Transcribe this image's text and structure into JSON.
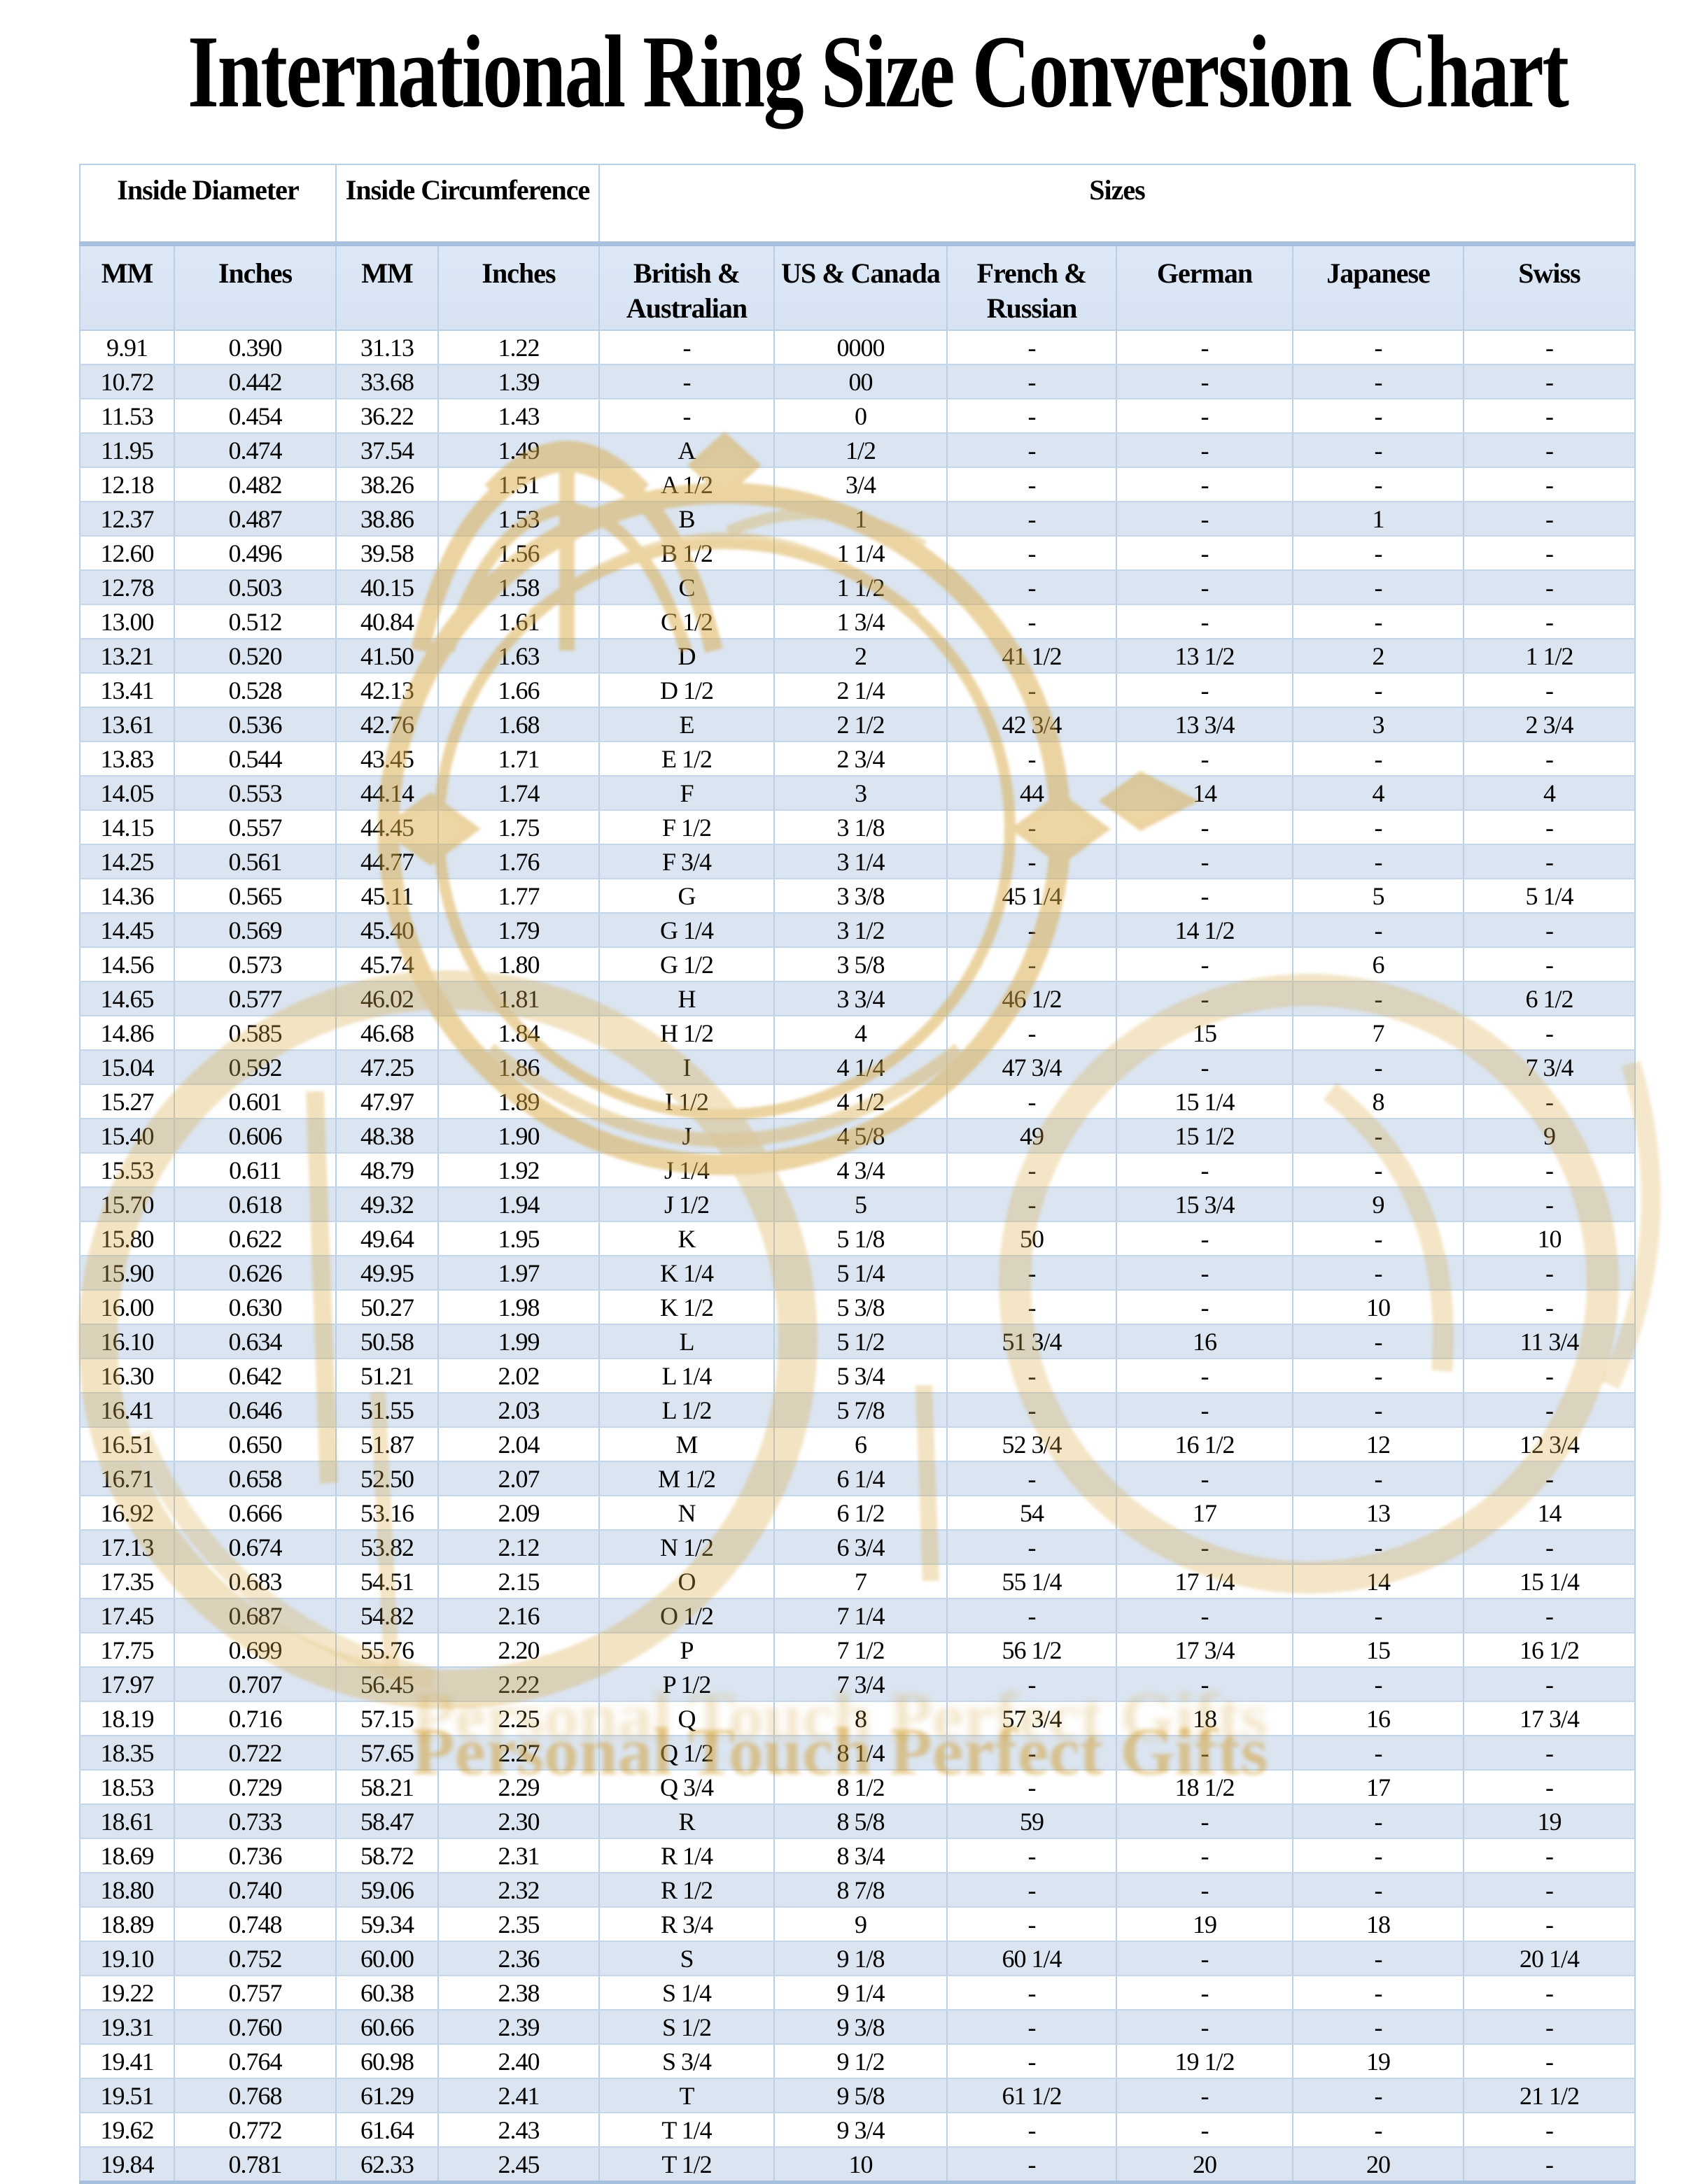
{
  "title": "International Ring Size Conversion Chart",
  "table": {
    "group_headers": [
      {
        "label": "Inside Diameter",
        "colspan": 2
      },
      {
        "label": "Inside Circumference",
        "colspan": 2
      },
      {
        "label": "Sizes",
        "colspan": 6
      }
    ],
    "columns": [
      "MM",
      "Inches",
      "MM",
      "Inches",
      "British & Australian",
      "US & Canada",
      "French & Russian",
      "German",
      "Japanese",
      "Swiss"
    ],
    "rows": [
      [
        "9.91",
        "0.390",
        "31.13",
        "1.22",
        "-",
        "0000",
        "-",
        "-",
        "-",
        "-"
      ],
      [
        "10.72",
        "0.442",
        "33.68",
        "1.39",
        "-",
        "00",
        "-",
        "-",
        "-",
        "-"
      ],
      [
        "11.53",
        "0.454",
        "36.22",
        "1.43",
        "-",
        "0",
        "-",
        "-",
        "-",
        "-"
      ],
      [
        "11.95",
        "0.474",
        "37.54",
        "1.49",
        "A",
        "1/2",
        "-",
        "-",
        "-",
        "-"
      ],
      [
        "12.18",
        "0.482",
        "38.26",
        "1.51",
        "A 1/2",
        "3/4",
        "-",
        "-",
        "-",
        "-"
      ],
      [
        "12.37",
        "0.487",
        "38.86",
        "1.53",
        "B",
        "1",
        "-",
        "-",
        "1",
        "-"
      ],
      [
        "12.60",
        "0.496",
        "39.58",
        "1.56",
        "B 1/2",
        "1 1/4",
        "-",
        "-",
        "-",
        "-"
      ],
      [
        "12.78",
        "0.503",
        "40.15",
        "1.58",
        "C",
        "1 1/2",
        "-",
        "-",
        "-",
        "-"
      ],
      [
        "13.00",
        "0.512",
        "40.84",
        "1.61",
        "C 1/2",
        "1 3/4",
        "-",
        "-",
        "-",
        "-"
      ],
      [
        "13.21",
        "0.520",
        "41.50",
        "1.63",
        "D",
        "2",
        "41 1/2",
        "13 1/2",
        "2",
        "1 1/2"
      ],
      [
        "13.41",
        "0.528",
        "42.13",
        "1.66",
        "D 1/2",
        "2 1/4",
        "-",
        "-",
        "-",
        "-"
      ],
      [
        "13.61",
        "0.536",
        "42.76",
        "1.68",
        "E",
        "2 1/2",
        "42 3/4",
        "13 3/4",
        "3",
        "2 3/4"
      ],
      [
        "13.83",
        "0.544",
        "43.45",
        "1.71",
        "E 1/2",
        "2 3/4",
        "-",
        "-",
        "-",
        "-"
      ],
      [
        "14.05",
        "0.553",
        "44.14",
        "1.74",
        "F",
        "3",
        "44",
        "14",
        "4",
        "4"
      ],
      [
        "14.15",
        "0.557",
        "44.45",
        "1.75",
        "F 1/2",
        "3 1/8",
        "-",
        "-",
        "-",
        "-"
      ],
      [
        "14.25",
        "0.561",
        "44.77",
        "1.76",
        "F 3/4",
        "3 1/4",
        "-",
        "-",
        "-",
        "-"
      ],
      [
        "14.36",
        "0.565",
        "45.11",
        "1.77",
        "G",
        "3 3/8",
        "45 1/4",
        "-",
        "5",
        "5 1/4"
      ],
      [
        "14.45",
        "0.569",
        "45.40",
        "1.79",
        "G 1/4",
        "3 1/2",
        "-",
        "14 1/2",
        "-",
        "-"
      ],
      [
        "14.56",
        "0.573",
        "45.74",
        "1.80",
        "G 1/2",
        "3 5/8",
        "-",
        "-",
        "6",
        "-"
      ],
      [
        "14.65",
        "0.577",
        "46.02",
        "1.81",
        "H",
        "3 3/4",
        "46 1/2",
        "-",
        "-",
        "6 1/2"
      ],
      [
        "14.86",
        "0.585",
        "46.68",
        "1.84",
        "H 1/2",
        "4",
        "-",
        "15",
        "7",
        "-"
      ],
      [
        "15.04",
        "0.592",
        "47.25",
        "1.86",
        "I",
        "4 1/4",
        "47 3/4",
        "-",
        "-",
        "7 3/4"
      ],
      [
        "15.27",
        "0.601",
        "47.97",
        "1.89",
        "I 1/2",
        "4 1/2",
        "-",
        "15 1/4",
        "8",
        "-"
      ],
      [
        "15.40",
        "0.606",
        "48.38",
        "1.90",
        "J",
        "4 5/8",
        "49",
        "15 1/2",
        "-",
        "9"
      ],
      [
        "15.53",
        "0.611",
        "48.79",
        "1.92",
        "J 1/4",
        "4 3/4",
        "-",
        "-",
        "-",
        "-"
      ],
      [
        "15.70",
        "0.618",
        "49.32",
        "1.94",
        "J 1/2",
        "5",
        "-",
        "15 3/4",
        "9",
        "-"
      ],
      [
        "15.80",
        "0.622",
        "49.64",
        "1.95",
        "K",
        "5 1/8",
        "50",
        "-",
        "-",
        "10"
      ],
      [
        "15.90",
        "0.626",
        "49.95",
        "1.97",
        "K 1/4",
        "5 1/4",
        "-",
        "-",
        "-",
        "-"
      ],
      [
        "16.00",
        "0.630",
        "50.27",
        "1.98",
        "K 1/2",
        "5 3/8",
        "-",
        "-",
        "10",
        "-"
      ],
      [
        "16.10",
        "0.634",
        "50.58",
        "1.99",
        "L",
        "5 1/2",
        "51 3/4",
        "16",
        "-",
        "11 3/4"
      ],
      [
        "16.30",
        "0.642",
        "51.21",
        "2.02",
        "L 1/4",
        "5 3/4",
        "-",
        "-",
        "-",
        "-"
      ],
      [
        "16.41",
        "0.646",
        "51.55",
        "2.03",
        "L 1/2",
        "5 7/8",
        "-",
        "-",
        "-",
        "-"
      ],
      [
        "16.51",
        "0.650",
        "51.87",
        "2.04",
        "M",
        "6",
        "52 3/4",
        "16 1/2",
        "12",
        "12 3/4"
      ],
      [
        "16.71",
        "0.658",
        "52.50",
        "2.07",
        "M 1/2",
        "6 1/4",
        "-",
        "-",
        "-",
        "-"
      ],
      [
        "16.92",
        "0.666",
        "53.16",
        "2.09",
        "N",
        "6 1/2",
        "54",
        "17",
        "13",
        "14"
      ],
      [
        "17.13",
        "0.674",
        "53.82",
        "2.12",
        "N 1/2",
        "6 3/4",
        "-",
        "-",
        "-",
        "-"
      ],
      [
        "17.35",
        "0.683",
        "54.51",
        "2.15",
        "O",
        "7",
        "55 1/4",
        "17 1/4",
        "14",
        "15 1/4"
      ],
      [
        "17.45",
        "0.687",
        "54.82",
        "2.16",
        "O 1/2",
        "7 1/4",
        "-",
        "-",
        "-",
        "-"
      ],
      [
        "17.75",
        "0.699",
        "55.76",
        "2.20",
        "P",
        "7 1/2",
        "56 1/2",
        "17 3/4",
        "15",
        "16 1/2"
      ],
      [
        "17.97",
        "0.707",
        "56.45",
        "2.22",
        "P 1/2",
        "7 3/4",
        "-",
        "-",
        "-",
        "-"
      ],
      [
        "18.19",
        "0.716",
        "57.15",
        "2.25",
        "Q",
        "8",
        "57 3/4",
        "18",
        "16",
        "17 3/4"
      ],
      [
        "18.35",
        "0.722",
        "57.65",
        "2.27",
        "Q 1/2",
        "8 1/4",
        "-",
        "-",
        "-",
        "-"
      ],
      [
        "18.53",
        "0.729",
        "58.21",
        "2.29",
        "Q 3/4",
        "8 1/2",
        "-",
        "18 1/2",
        "17",
        "-"
      ],
      [
        "18.61",
        "0.733",
        "58.47",
        "2.30",
        "R",
        "8 5/8",
        "59",
        "-",
        "-",
        "19"
      ],
      [
        "18.69",
        "0.736",
        "58.72",
        "2.31",
        "R 1/4",
        "8 3/4",
        "-",
        "-",
        "-",
        "-"
      ],
      [
        "18.80",
        "0.740",
        "59.06",
        "2.32",
        "R 1/2",
        "8 7/8",
        "-",
        "-",
        "-",
        "-"
      ],
      [
        "18.89",
        "0.748",
        "59.34",
        "2.35",
        "R 3/4",
        "9",
        "-",
        "19",
        "18",
        "-"
      ],
      [
        "19.10",
        "0.752",
        "60.00",
        "2.36",
        "S",
        "9 1/8",
        "60 1/4",
        "-",
        "-",
        "20 1/4"
      ],
      [
        "19.22",
        "0.757",
        "60.38",
        "2.38",
        "S 1/4",
        "9 1/4",
        "-",
        "-",
        "-",
        "-"
      ],
      [
        "19.31",
        "0.760",
        "60.66",
        "2.39",
        "S 1/2",
        "9 3/8",
        "-",
        "-",
        "-",
        "-"
      ],
      [
        "19.41",
        "0.764",
        "60.98",
        "2.40",
        "S 3/4",
        "9 1/2",
        "-",
        "19 1/2",
        "19",
        "-"
      ],
      [
        "19.51",
        "0.768",
        "61.29",
        "2.41",
        "T",
        "9 5/8",
        "61 1/2",
        "-",
        "-",
        "21 1/2"
      ],
      [
        "19.62",
        "0.772",
        "61.64",
        "2.43",
        "T 1/4",
        "9 3/4",
        "-",
        "-",
        "-",
        "-"
      ],
      [
        "19.84",
        "0.781",
        "62.33",
        "2.45",
        "T 1/2",
        "10",
        "-",
        "20",
        "20",
        "-"
      ]
    ]
  },
  "watermark": {
    "text": "Personal Touch Perfect Gifts",
    "color": "#d3a23c"
  },
  "colors": {
    "row_stripe": "#dbe5f1",
    "grid_line": "#b9cfe6",
    "header_accent": "#a6c0de",
    "watermark_gold": "#d3a23c"
  }
}
